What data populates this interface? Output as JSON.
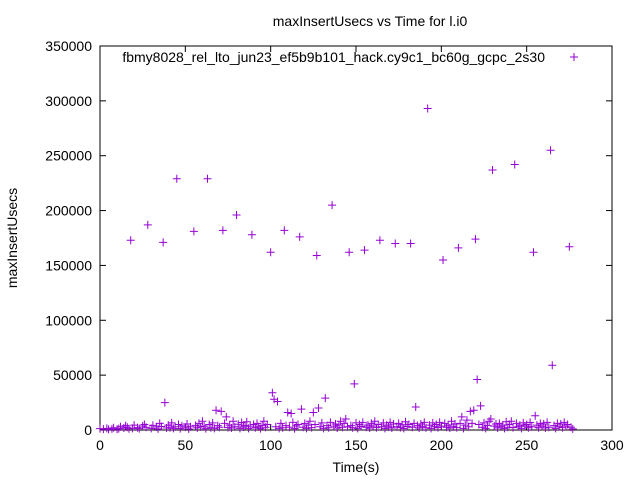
{
  "chart_data": {
    "type": "scatter",
    "title": "maxInsertUsecs vs Time for l.i0",
    "xlabel": "Time(s)",
    "ylabel": "maxInsertUsecs",
    "xlim": [
      0,
      300
    ],
    "ylim": [
      0,
      350000
    ],
    "xticks": [
      0,
      50,
      100,
      150,
      200,
      250,
      300
    ],
    "yticks": [
      0,
      50000,
      100000,
      150000,
      200000,
      250000,
      300000,
      350000
    ],
    "grid": false,
    "legend_position": "top-right",
    "series": [
      {
        "name": "fbmy8028_rel_lto_jun23_ef5b9b101_hack.cy9c1_bc60g_gcpc_2s30",
        "color": "#9400d3",
        "marker": "plus",
        "points": [
          [
            0,
            1200
          ],
          [
            2,
            800
          ],
          [
            4,
            1500
          ],
          [
            5,
            600
          ],
          [
            7,
            1000
          ],
          [
            8,
            2000
          ],
          [
            10,
            700
          ],
          [
            11,
            1300
          ],
          [
            12,
            3000
          ],
          [
            14,
            1800
          ],
          [
            15,
            4000
          ],
          [
            16,
            2500
          ],
          [
            17,
            1100
          ],
          [
            18,
            173000
          ],
          [
            19,
            1500
          ],
          [
            20,
            4500
          ],
          [
            22,
            2200
          ],
          [
            23,
            1200
          ],
          [
            25,
            3600
          ],
          [
            26,
            5000
          ],
          [
            27,
            2500
          ],
          [
            28,
            187000
          ],
          [
            30,
            1500
          ],
          [
            31,
            4200
          ],
          [
            33,
            2800
          ],
          [
            34,
            1000
          ],
          [
            35,
            6000
          ],
          [
            36,
            3200
          ],
          [
            37,
            171000
          ],
          [
            38,
            25000
          ],
          [
            39,
            1800
          ],
          [
            40,
            4500
          ],
          [
            41,
            2000
          ],
          [
            42,
            6500
          ],
          [
            43,
            1500
          ],
          [
            44,
            3000
          ],
          [
            45,
            229000
          ],
          [
            46,
            5000
          ],
          [
            47,
            1200
          ],
          [
            48,
            3800
          ],
          [
            50,
            2600
          ],
          [
            51,
            5500
          ],
          [
            52,
            1000
          ],
          [
            53,
            3000
          ],
          [
            55,
            181000
          ],
          [
            56,
            4200
          ],
          [
            57,
            1900
          ],
          [
            58,
            6000
          ],
          [
            59,
            2800
          ],
          [
            60,
            8000
          ],
          [
            61,
            3500
          ],
          [
            62,
            1200
          ],
          [
            63,
            229000
          ],
          [
            64,
            5000
          ],
          [
            65,
            2000
          ],
          [
            66,
            6500
          ],
          [
            67,
            1500
          ],
          [
            68,
            18000
          ],
          [
            69,
            4000
          ],
          [
            70,
            2500
          ],
          [
            71,
            17000
          ],
          [
            72,
            182000
          ],
          [
            73,
            6000
          ],
          [
            74,
            12000
          ],
          [
            75,
            2200
          ],
          [
            76,
            4500
          ],
          [
            77,
            1800
          ],
          [
            78,
            8000
          ],
          [
            79,
            3000
          ],
          [
            80,
            196000
          ],
          [
            81,
            5200
          ],
          [
            82,
            1500
          ],
          [
            83,
            6800
          ],
          [
            84,
            2700
          ],
          [
            85,
            4000
          ],
          [
            86,
            7500
          ],
          [
            87,
            1500
          ],
          [
            88,
            3500
          ],
          [
            89,
            178000
          ],
          [
            90,
            5000
          ],
          [
            91,
            2000
          ],
          [
            92,
            6000
          ],
          [
            93,
            2800
          ],
          [
            94,
            1200
          ],
          [
            95,
            4200
          ],
          [
            96,
            8000
          ],
          [
            97,
            2500
          ],
          [
            98,
            5000
          ],
          [
            100,
            162000
          ],
          [
            101,
            34000
          ],
          [
            102,
            28000
          ],
          [
            103,
            3000
          ],
          [
            104,
            26000
          ],
          [
            105,
            1500
          ],
          [
            106,
            6000
          ],
          [
            107,
            2000
          ],
          [
            108,
            182000
          ],
          [
            109,
            4000
          ],
          [
            110,
            16000
          ],
          [
            111,
            2500
          ],
          [
            112,
            15000
          ],
          [
            113,
            7000
          ],
          [
            114,
            1200
          ],
          [
            115,
            3800
          ],
          [
            116,
            5000
          ],
          [
            117,
            176000
          ],
          [
            118,
            19000
          ],
          [
            119,
            2500
          ],
          [
            120,
            6000
          ],
          [
            121,
            1500
          ],
          [
            122,
            4500
          ],
          [
            123,
            8000
          ],
          [
            124,
            2200
          ],
          [
            125,
            16000
          ],
          [
            126,
            5000
          ],
          [
            127,
            159000
          ],
          [
            128,
            20000
          ],
          [
            129,
            3000
          ],
          [
            130,
            6500
          ],
          [
            131,
            1500
          ],
          [
            132,
            29000
          ],
          [
            133,
            4000
          ],
          [
            134,
            2000
          ],
          [
            135,
            7000
          ],
          [
            136,
            205000
          ],
          [
            137,
            3500
          ],
          [
            138,
            5500
          ],
          [
            139,
            1800
          ],
          [
            140,
            4500
          ],
          [
            141,
            8000
          ],
          [
            142,
            2500
          ],
          [
            143,
            6000
          ],
          [
            144,
            10000
          ],
          [
            145,
            3000
          ],
          [
            146,
            162000
          ],
          [
            147,
            4000
          ],
          [
            148,
            2000
          ],
          [
            149,
            42000
          ],
          [
            150,
            6500
          ],
          [
            151,
            1500
          ],
          [
            152,
            5000
          ],
          [
            153,
            3200
          ],
          [
            154,
            7000
          ],
          [
            155,
            164000
          ],
          [
            156,
            2500
          ],
          [
            157,
            4500
          ],
          [
            158,
            1800
          ],
          [
            159,
            6000
          ],
          [
            160,
            3500
          ],
          [
            161,
            8000
          ],
          [
            162,
            2200
          ],
          [
            163,
            5000
          ],
          [
            164,
            173000
          ],
          [
            165,
            3000
          ],
          [
            166,
            6500
          ],
          [
            167,
            1500
          ],
          [
            168,
            4500
          ],
          [
            169,
            2800
          ],
          [
            170,
            7000
          ],
          [
            171,
            1800
          ],
          [
            172,
            5500
          ],
          [
            173,
            170000
          ],
          [
            174,
            3000
          ],
          [
            175,
            6000
          ],
          [
            176,
            2200
          ],
          [
            177,
            4800
          ],
          [
            178,
            1500
          ],
          [
            179,
            7500
          ],
          [
            180,
            3200
          ],
          [
            181,
            5000
          ],
          [
            182,
            170000
          ],
          [
            183,
            2500
          ],
          [
            184,
            6000
          ],
          [
            185,
            21000
          ],
          [
            186,
            4000
          ],
          [
            187,
            1800
          ],
          [
            188,
            5500
          ],
          [
            189,
            3000
          ],
          [
            190,
            7000
          ],
          [
            191,
            2000
          ],
          [
            192,
            293000
          ],
          [
            193,
            4500
          ],
          [
            194,
            1500
          ],
          [
            195,
            6500
          ],
          [
            196,
            3000
          ],
          [
            197,
            5000
          ],
          [
            198,
            2200
          ],
          [
            199,
            7000
          ],
          [
            200,
            3500
          ],
          [
            201,
            155000
          ],
          [
            202,
            6000
          ],
          [
            203,
            2500
          ],
          [
            204,
            4500
          ],
          [
            205,
            1800
          ],
          [
            206,
            8000
          ],
          [
            207,
            3000
          ],
          [
            208,
            5500
          ],
          [
            209,
            2200
          ],
          [
            210,
            166000
          ],
          [
            211,
            6000
          ],
          [
            212,
            12000
          ],
          [
            213,
            1500
          ],
          [
            214,
            4500
          ],
          [
            215,
            9000
          ],
          [
            216,
            3000
          ],
          [
            217,
            17000
          ],
          [
            218,
            6000
          ],
          [
            219,
            18000
          ],
          [
            220,
            174000
          ],
          [
            221,
            46000
          ],
          [
            222,
            5000
          ],
          [
            223,
            22000
          ],
          [
            224,
            2500
          ],
          [
            225,
            6500
          ],
          [
            226,
            1500
          ],
          [
            227,
            4000
          ],
          [
            228,
            8000
          ],
          [
            229,
            10000
          ],
          [
            230,
            237000
          ],
          [
            231,
            3500
          ],
          [
            232,
            5500
          ],
          [
            233,
            1800
          ],
          [
            234,
            6000
          ],
          [
            235,
            3000
          ],
          [
            236,
            4500
          ],
          [
            237,
            1500
          ],
          [
            238,
            7500
          ],
          [
            239,
            2500
          ],
          [
            240,
            5000
          ],
          [
            241,
            8000
          ],
          [
            242,
            2200
          ],
          [
            243,
            242000
          ],
          [
            244,
            6000
          ],
          [
            245,
            3000
          ],
          [
            246,
            4500
          ],
          [
            247,
            1500
          ],
          [
            248,
            6500
          ],
          [
            249,
            3500
          ],
          [
            250,
            5000
          ],
          [
            251,
            2000
          ],
          [
            252,
            7000
          ],
          [
            253,
            3000
          ],
          [
            254,
            162000
          ],
          [
            255,
            13000
          ],
          [
            256,
            4500
          ],
          [
            257,
            2000
          ],
          [
            258,
            6000
          ],
          [
            259,
            3500
          ],
          [
            260,
            5500
          ],
          [
            261,
            1800
          ],
          [
            262,
            7000
          ],
          [
            263,
            2500
          ],
          [
            264,
            255000
          ],
          [
            265,
            59000
          ],
          [
            266,
            4000
          ],
          [
            267,
            1500
          ],
          [
            268,
            6000
          ],
          [
            269,
            3000
          ],
          [
            270,
            5500
          ],
          [
            271,
            2200
          ],
          [
            272,
            7000
          ],
          [
            273,
            3500
          ],
          [
            274,
            5000
          ],
          [
            275,
            167000
          ],
          [
            276,
            2500
          ],
          [
            277,
            1000
          ]
        ]
      }
    ]
  }
}
